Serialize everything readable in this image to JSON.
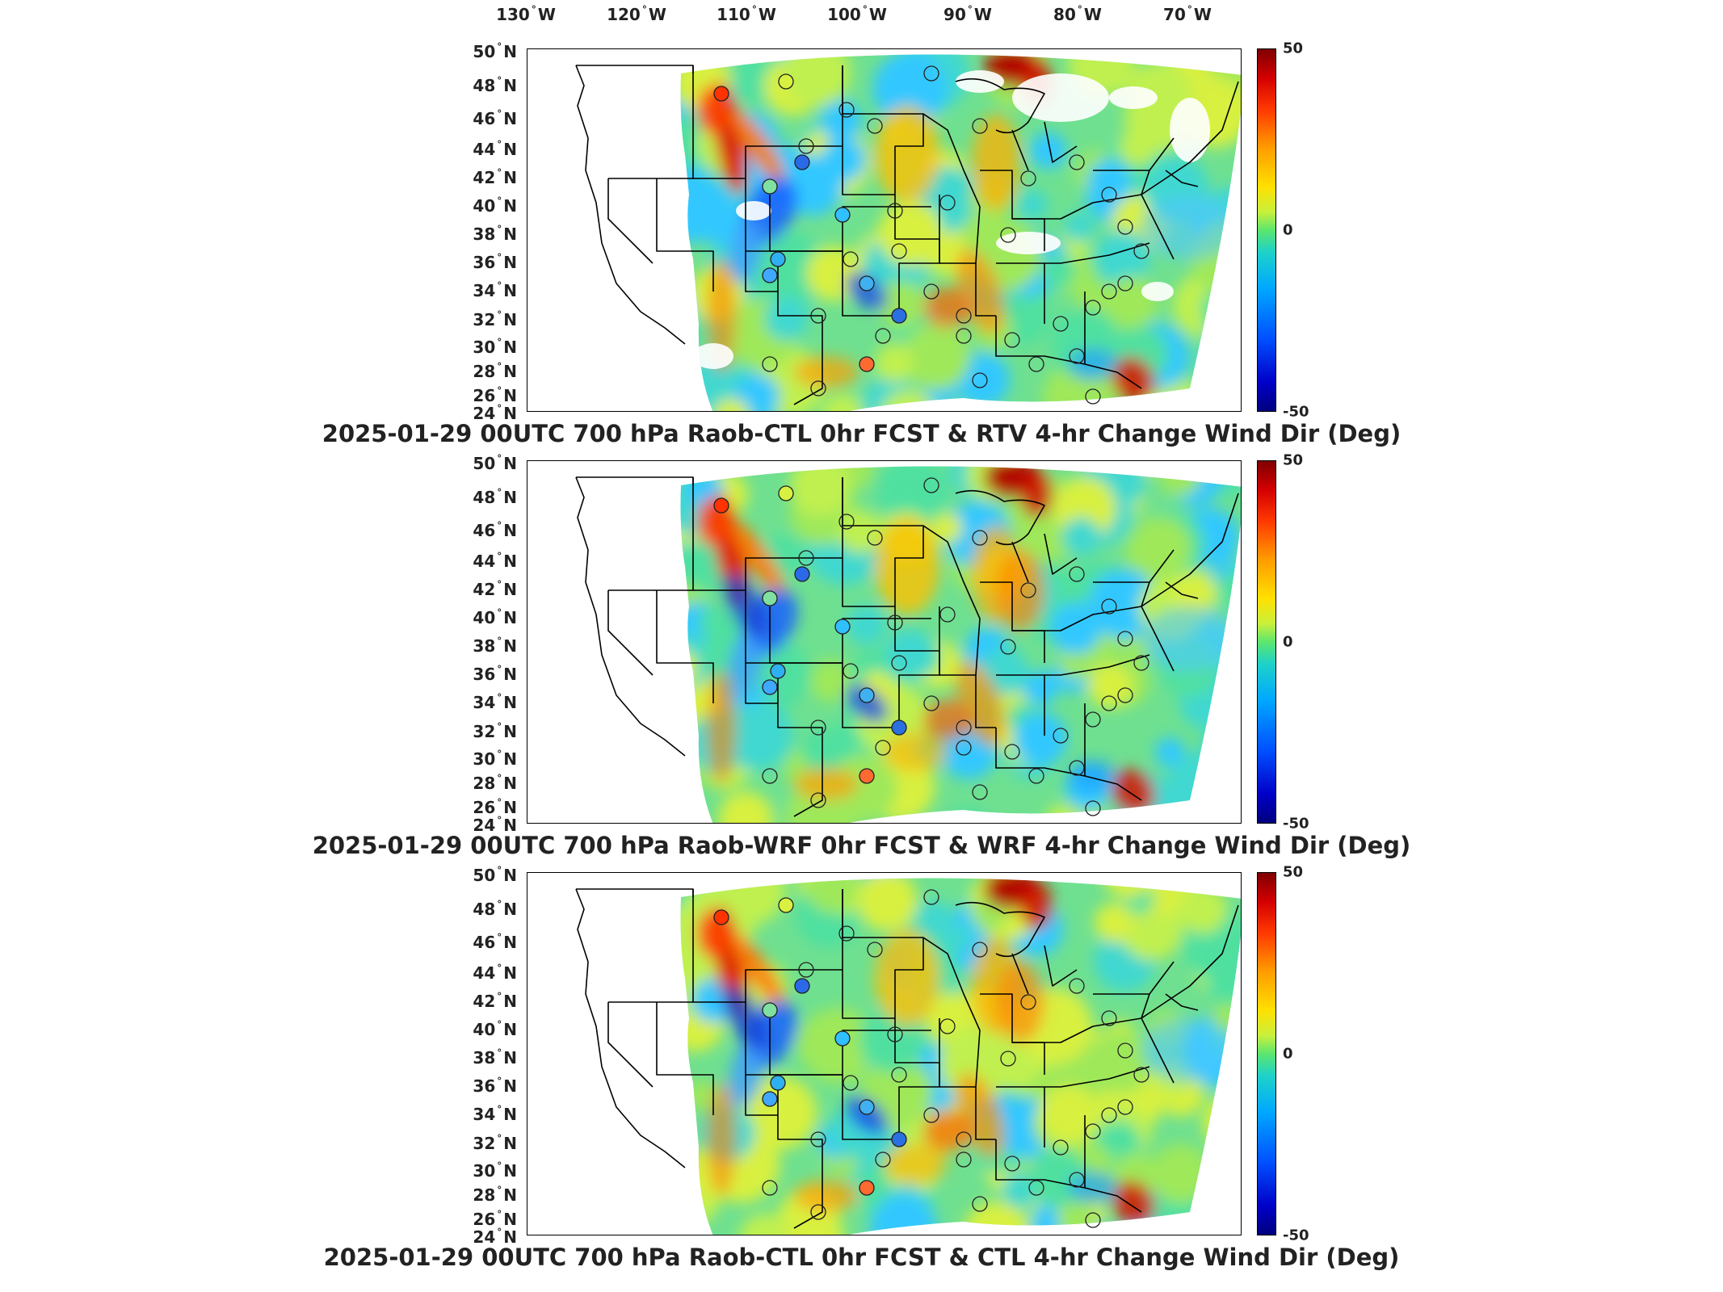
{
  "longitude_labels": [
    {
      "value": "130",
      "hemi": "W"
    },
    {
      "value": "120",
      "hemi": "W"
    },
    {
      "value": "110",
      "hemi": "W"
    },
    {
      "value": "100",
      "hemi": "W"
    },
    {
      "value": "90",
      "hemi": "W"
    },
    {
      "value": "80",
      "hemi": "W"
    },
    {
      "value": "70",
      "hemi": "W"
    }
  ],
  "latitude_labels": [
    "50",
    "48",
    "46",
    "44",
    "42",
    "40",
    "38",
    "36",
    "34",
    "32",
    "30",
    "28",
    "26",
    "24"
  ],
  "lat_hemi": "N",
  "colorbar": {
    "max": "50",
    "mid": "0",
    "min": "-50",
    "unit": "Deg"
  },
  "colors": {
    "station_outline": "#222222",
    "state_lines": "#000000"
  },
  "panels": [
    {
      "caption": "2025-01-29 00UTC 700 hPa Raob-CTL 0hr FCST & RTV 4-hr Change Wind Dir (Deg)",
      "has_missing_data": true
    },
    {
      "caption": "2025-01-29 00UTC 700 hPa Raob-WRF 0hr FCST & WRF 4-hr Change Wind Dir (Deg)",
      "has_missing_data": false
    },
    {
      "caption": "2025-01-29 00UTC 700 hPa Raob-CTL 0hr FCST & CTL 4-hr Change Wind Dir (Deg)",
      "has_missing_data": false
    }
  ]
}
